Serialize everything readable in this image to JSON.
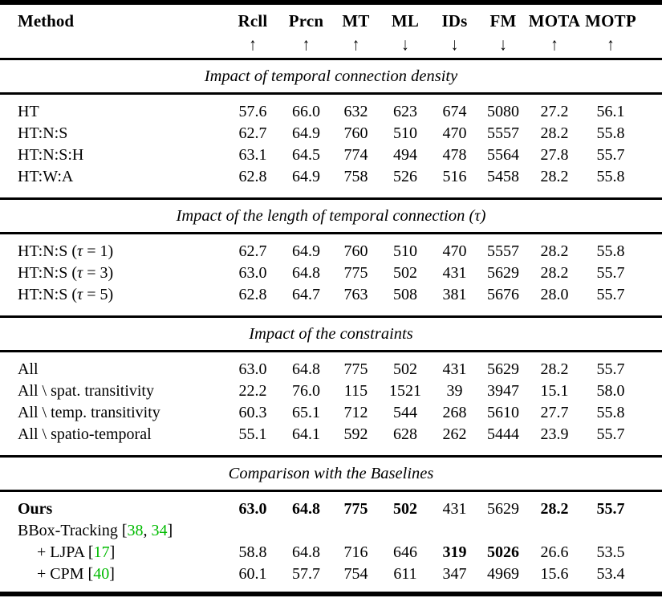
{
  "table": {
    "colors": {
      "citation_green": "#00bb00",
      "text": "#000000",
      "background": "#ffffff"
    },
    "header": {
      "method": "Method",
      "columns": [
        {
          "label": "Rcll",
          "arrow": "↑"
        },
        {
          "label": "Prcn",
          "arrow": "↑"
        },
        {
          "label": "MT",
          "arrow": "↑"
        },
        {
          "label": "ML",
          "arrow": "↓"
        },
        {
          "label": "IDs",
          "arrow": "↓"
        },
        {
          "label": "FM",
          "arrow": "↓"
        },
        {
          "label": "MOTA",
          "arrow": "↑"
        },
        {
          "label": "MOTP",
          "arrow": "↑"
        }
      ]
    },
    "sections": [
      {
        "title": "Impact of temporal connection density",
        "rows": [
          {
            "parts": [
              {
                "t": "HT"
              }
            ],
            "values": [
              "57.6",
              "66.0",
              "632",
              "623",
              "674",
              "5080",
              "27.2",
              "56.1"
            ],
            "bold": []
          },
          {
            "parts": [
              {
                "t": "HT:N:S"
              }
            ],
            "values": [
              "62.7",
              "64.9",
              "760",
              "510",
              "470",
              "5557",
              "28.2",
              "55.8"
            ],
            "bold": []
          },
          {
            "parts": [
              {
                "t": "HT:N:S:H"
              }
            ],
            "values": [
              "63.1",
              "64.5",
              "774",
              "494",
              "478",
              "5564",
              "27.8",
              "55.7"
            ],
            "bold": []
          },
          {
            "parts": [
              {
                "t": "HT:W:A"
              }
            ],
            "values": [
              "62.8",
              "64.9",
              "758",
              "526",
              "516",
              "5458",
              "28.2",
              "55.8"
            ],
            "bold": []
          }
        ]
      },
      {
        "title": "Impact of the length of temporal connection (τ)",
        "rows": [
          {
            "parts": [
              {
                "t": "HT:N:S ("
              },
              {
                "t": "τ",
                "i": true
              },
              {
                "t": " = 1)"
              }
            ],
            "values": [
              "62.7",
              "64.9",
              "760",
              "510",
              "470",
              "5557",
              "28.2",
              "55.8"
            ],
            "bold": []
          },
          {
            "parts": [
              {
                "t": "HT:N:S ("
              },
              {
                "t": "τ",
                "i": true
              },
              {
                "t": " = 3)"
              }
            ],
            "values": [
              "63.0",
              "64.8",
              "775",
              "502",
              "431",
              "5629",
              "28.2",
              "55.7"
            ],
            "bold": []
          },
          {
            "parts": [
              {
                "t": "HT:N:S ("
              },
              {
                "t": "τ",
                "i": true
              },
              {
                "t": " = 5)"
              }
            ],
            "values": [
              "62.8",
              "64.7",
              "763",
              "508",
              "381",
              "5676",
              "28.0",
              "55.7"
            ],
            "bold": []
          }
        ]
      },
      {
        "title": "Impact of the constraints",
        "rows": [
          {
            "parts": [
              {
                "t": "All"
              }
            ],
            "values": [
              "63.0",
              "64.8",
              "775",
              "502",
              "431",
              "5629",
              "28.2",
              "55.7"
            ],
            "bold": []
          },
          {
            "parts": [
              {
                "t": "All \\ spat. transitivity"
              }
            ],
            "values": [
              "22.2",
              "76.0",
              "115",
              "1521",
              "39",
              "3947",
              "15.1",
              "58.0"
            ],
            "bold": []
          },
          {
            "parts": [
              {
                "t": "All \\ temp. transitivity"
              }
            ],
            "values": [
              "60.3",
              "65.1",
              "712",
              "544",
              "268",
              "5610",
              "27.7",
              "55.8"
            ],
            "bold": []
          },
          {
            "parts": [
              {
                "t": "All \\ spatio-temporal"
              }
            ],
            "values": [
              "55.1",
              "64.1",
              "592",
              "628",
              "262",
              "5444",
              "23.9",
              "55.7"
            ],
            "bold": []
          }
        ]
      },
      {
        "title": "Comparison with the Baselines",
        "rows": [
          {
            "parts": [
              {
                "t": "Ours"
              }
            ],
            "bold_label": true,
            "values": [
              "63.0",
              "64.8",
              "775",
              "502",
              "431",
              "5629",
              "28.2",
              "55.7"
            ],
            "bold": [
              0,
              1,
              2,
              3,
              6,
              7
            ]
          },
          {
            "parts": [
              {
                "t": "BBox-Tracking ["
              },
              {
                "t": "38",
                "g": true
              },
              {
                "t": ", "
              },
              {
                "t": "34",
                "g": true
              },
              {
                "t": "]"
              }
            ],
            "values": [],
            "bold": []
          },
          {
            "parts": [
              {
                "t": "+ LJPA ["
              },
              {
                "t": "17",
                "g": true
              },
              {
                "t": "]"
              }
            ],
            "indent": true,
            "values": [
              "58.8",
              "64.8",
              "716",
              "646",
              "319",
              "5026",
              "26.6",
              "53.5"
            ],
            "bold": [
              4,
              5
            ]
          },
          {
            "parts": [
              {
                "t": "+ CPM ["
              },
              {
                "t": "40",
                "g": true
              },
              {
                "t": "]"
              }
            ],
            "indent": true,
            "values": [
              "60.1",
              "57.7",
              "754",
              "611",
              "347",
              "4969",
              "15.6",
              "53.4"
            ],
            "bold": []
          }
        ]
      }
    ]
  }
}
